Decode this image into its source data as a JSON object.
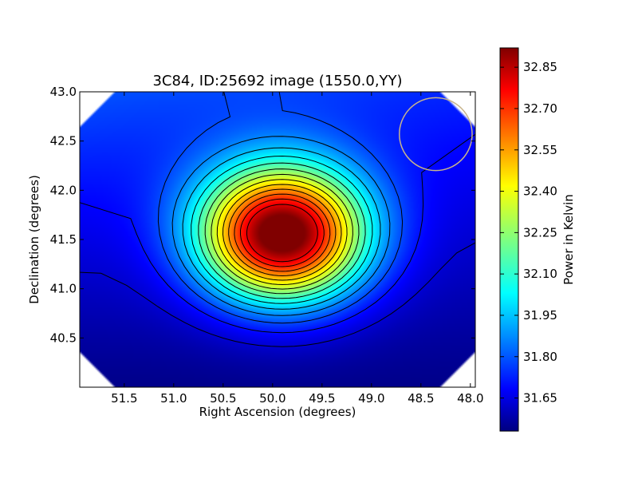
{
  "chart_data": {
    "type": "heatmap",
    "title": "3C84, ID:25692 image (1550.0,YY)",
    "xlabel": "Right Ascension (degrees)",
    "ylabel": "Declination (degrees)",
    "colorbar_label": "Power in Kelvin",
    "xlim": [
      51.95,
      47.95
    ],
    "ylim": [
      40.0,
      43.0
    ],
    "x_ticks": [
      51.5,
      51.0,
      50.5,
      50.0,
      49.5,
      49.0,
      48.5,
      48.0
    ],
    "x_tick_labels": [
      "51.5",
      "51.0",
      "50.5",
      "50.0",
      "49.5",
      "49.0",
      "48.5",
      "48.0"
    ],
    "y_ticks": [
      40.5,
      41.0,
      41.5,
      42.0,
      42.5,
      43.0
    ],
    "y_tick_labels": [
      "40.5",
      "41.0",
      "41.5",
      "42.0",
      "42.5",
      "43.0"
    ],
    "colorbar_range": [
      31.53,
      32.92
    ],
    "colorbar_ticks": [
      31.65,
      31.8,
      31.95,
      32.1,
      32.25,
      32.4,
      32.55,
      32.7,
      32.85
    ],
    "colorbar_tick_labels": [
      "31.65",
      "31.80",
      "31.95",
      "32.10",
      "32.25",
      "32.40",
      "32.55",
      "32.70",
      "32.85"
    ],
    "colormap": "jet",
    "peak": {
      "ra": 49.9,
      "dec": 41.55,
      "value": 32.9
    },
    "contour_count": 15,
    "beam_circle": {
      "ra": 48.35,
      "dec": 42.57,
      "radius_deg": 0.37,
      "color": "#c8b48c"
    },
    "grid": false
  }
}
